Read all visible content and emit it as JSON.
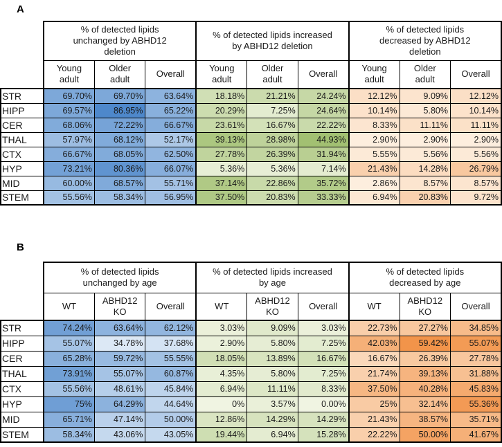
{
  "figure": {
    "panel_a_label": "A",
    "panel_b_label": "B"
  },
  "color_scales": {
    "unchanged": {
      "light": "#dce8f5",
      "dark": "#4e88cb",
      "min": 34.78,
      "max": 86.95
    },
    "increased": {
      "light": "#f0f4e2",
      "dark": "#a2c072",
      "min": 0,
      "max": 44.93
    },
    "decreased": {
      "light": "#fdeede",
      "dark": "#f2944a",
      "min": 2.86,
      "max": 59.42
    }
  },
  "chart_data": [
    {
      "type": "table",
      "subtype": "heatmap-table",
      "panel": "A",
      "groups": [
        {
          "title": "% of detected lipids\nunchanged by ABHD12\ndeletion",
          "scale": "unchanged",
          "columns": [
            "Young\nadult",
            "Older\nadult",
            "Overall"
          ]
        },
        {
          "title": "% of detected lipids increased\nby ABHD12 deletion",
          "scale": "increased",
          "columns": [
            "Young\nadult",
            "Older\nadult",
            "Overall"
          ]
        },
        {
          "title": "% of detected lipids\ndecreased by ABHD12\ndeletion",
          "scale": "decreased",
          "columns": [
            "Young\nadult",
            "Older\nadult",
            "Overall"
          ]
        }
      ],
      "rows": [
        {
          "label": "STR",
          "values": [
            "69.70%",
            "69.70%",
            "63.64%",
            "18.18%",
            "21.21%",
            "24.24%",
            "12.12%",
            "9.09%",
            "12.12%"
          ]
        },
        {
          "label": "HIPP",
          "values": [
            "69.57%",
            "86.95%",
            "65.22%",
            "20.29%",
            "7.25%",
            "24.64%",
            "10.14%",
            "5.80%",
            "10.14%"
          ]
        },
        {
          "label": "CER",
          "values": [
            "68.06%",
            "72.22%",
            "66.67%",
            "23.61%",
            "16.67%",
            "22.22%",
            "8.33%",
            "11.11%",
            "11.11%"
          ]
        },
        {
          "label": "THAL",
          "values": [
            "57.97%",
            "68.12%",
            "52.17%",
            "39.13%",
            "28.98%",
            "44.93%",
            "2.90%",
            "2.90%",
            "2.90%"
          ]
        },
        {
          "label": "CTX",
          "values": [
            "66.67%",
            "68.05%",
            "62.50%",
            "27.78%",
            "26.39%",
            "31.94%",
            "5.55%",
            "5.56%",
            "5.56%"
          ]
        },
        {
          "label": "HYP",
          "values": [
            "73.21%",
            "80.36%",
            "66.07%",
            "5.36%",
            "5.36%",
            "7.14%",
            "21.43%",
            "14.28%",
            "26.79%"
          ]
        },
        {
          "label": "MID",
          "values": [
            "60.00%",
            "68.57%",
            "55.71%",
            "37.14%",
            "22.86%",
            "35.72%",
            "2.86%",
            "8.57%",
            "8.57%"
          ]
        },
        {
          "label": "STEM",
          "values": [
            "55.56%",
            "58.34%",
            "56.95%",
            "37.50%",
            "20.83%",
            "33.33%",
            "6.94%",
            "20.83%",
            "9.72%"
          ]
        }
      ]
    },
    {
      "type": "table",
      "subtype": "heatmap-table",
      "panel": "B",
      "groups": [
        {
          "title": "% of detected lipids\nunchanged by age",
          "scale": "unchanged",
          "columns": [
            "WT",
            "ABHD12\nKO",
            "Overall"
          ]
        },
        {
          "title": "% of detected lipids increased\nby age",
          "scale": "increased",
          "columns": [
            "WT",
            "ABHD12\nKO",
            "Overall"
          ]
        },
        {
          "title": "% of detected lipids\ndecreased by age",
          "scale": "decreased",
          "columns": [
            "WT",
            "ABHD12\nKO",
            "Overall"
          ]
        }
      ],
      "rows": [
        {
          "label": "STR",
          "values": [
            "74.24%",
            "63.64%",
            "62.12%",
            "3.03%",
            "9.09%",
            "3.03%",
            "22.73%",
            "27.27%",
            "34.85%"
          ]
        },
        {
          "label": "HIPP",
          "values": [
            "55.07%",
            "34.78%",
            "37.68%",
            "2.90%",
            "5.80%",
            "7.25%",
            "42.03%",
            "59.42%",
            "55.07%"
          ]
        },
        {
          "label": "CER",
          "values": [
            "65.28%",
            "59.72%",
            "55.55%",
            "18.05%",
            "13.89%",
            "16.67%",
            "16.67%",
            "26.39%",
            "27.78%"
          ]
        },
        {
          "label": "THAL",
          "values": [
            "73.91%",
            "55.07%",
            "60.87%",
            "4.35%",
            "5.80%",
            "7.25%",
            "21.74%",
            "39.13%",
            "31.88%"
          ]
        },
        {
          "label": "CTX",
          "values": [
            "55.56%",
            "48.61%",
            "45.84%",
            "6.94%",
            "11.11%",
            "8.33%",
            "37.50%",
            "40.28%",
            "45.83%"
          ]
        },
        {
          "label": "HYP",
          "values": [
            "75%",
            "64.29%",
            "44.64%",
            "0%",
            "3.57%",
            "0.00%",
            "25%",
            "32.14%",
            "55.36%"
          ]
        },
        {
          "label": "MID",
          "values": [
            "65.71%",
            "47.14%",
            "50.00%",
            "12.86%",
            "14.29%",
            "14.29%",
            "21.43%",
            "38.57%",
            "35.71%"
          ]
        },
        {
          "label": "STEM",
          "values": [
            "58.34%",
            "43.06%",
            "43.05%",
            "19.44%",
            "6.94%",
            "15.28%",
            "22.22%",
            "50.00%",
            "41.67%"
          ]
        }
      ]
    }
  ]
}
